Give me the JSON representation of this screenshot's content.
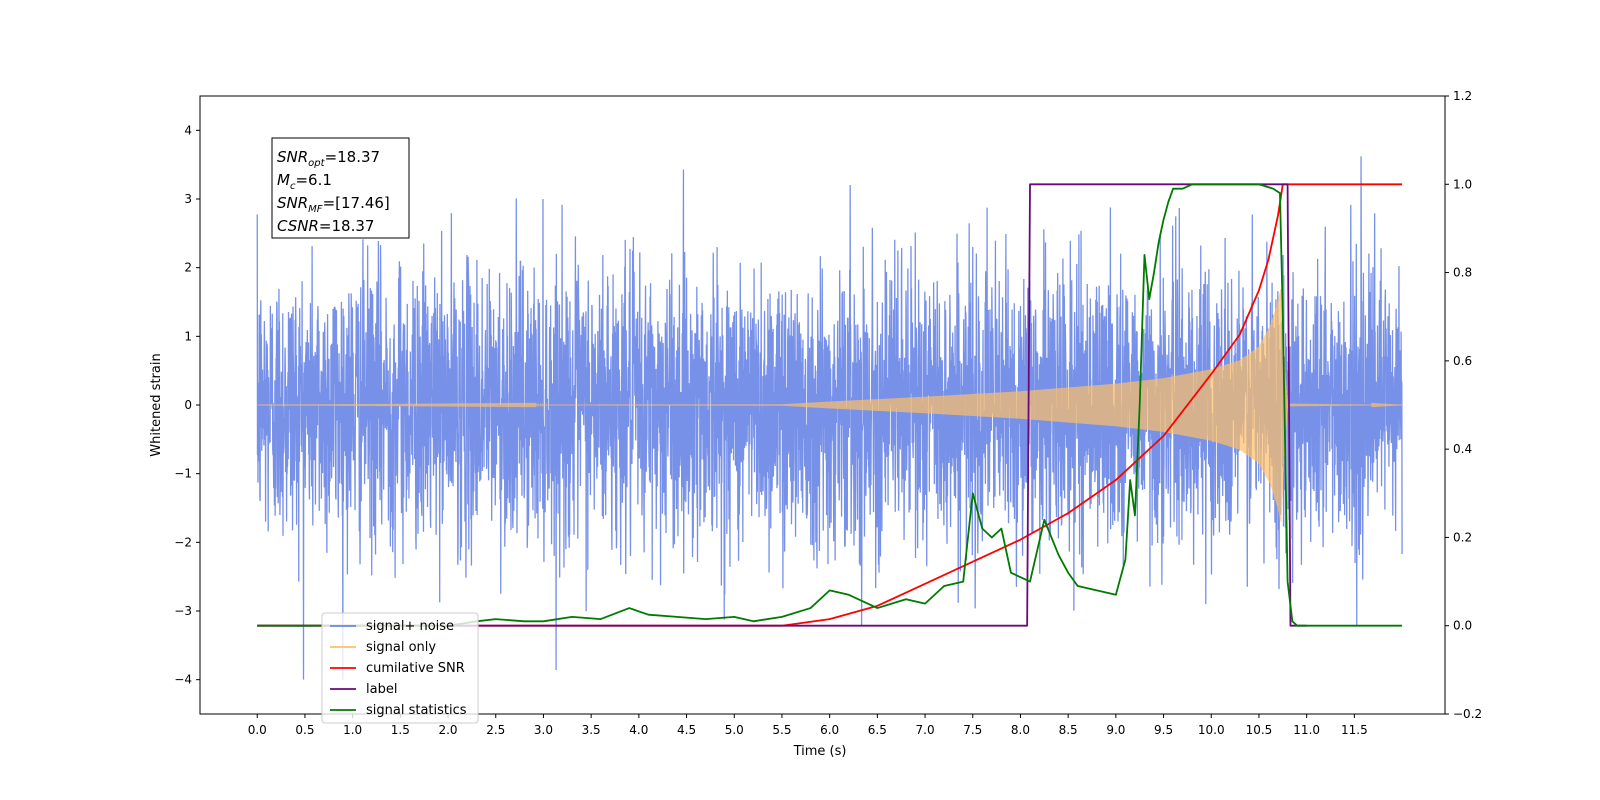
{
  "chart_data": {
    "type": "line",
    "xlabel": "Time (s)",
    "ylabel": "Whitened strain",
    "xlim": [
      -0.6,
      12.45
    ],
    "ylim": [
      -4.5,
      4.5
    ],
    "y2lim": [
      -0.2,
      1.2
    ],
    "x_ticks": [
      "0.0",
      "0.5",
      "1.0",
      "1.5",
      "2.0",
      "2.5",
      "3.0",
      "3.5",
      "4.0",
      "4.5",
      "5.0",
      "5.5",
      "6.0",
      "6.5",
      "7.0",
      "7.5",
      "8.0",
      "8.5",
      "9.0",
      "9.5",
      "10.0",
      "10.5",
      "11.0",
      "11.5"
    ],
    "y_ticks": [
      "−4",
      "−3",
      "−2",
      "−1",
      "0",
      "1",
      "2",
      "3",
      "4"
    ],
    "y2_ticks": [
      "−0.2",
      "0.0",
      "0.2",
      "0.4",
      "0.6",
      "0.8",
      "1.0",
      "1.2"
    ],
    "annotation": {
      "lines": [
        {
          "base": "SNR",
          "sub": "opt",
          "rest": "=18.37"
        },
        {
          "base": "M",
          "sub": "c",
          "rest": "=6.1"
        },
        {
          "base": "SNR",
          "sub": "MF",
          "rest": "=[17.46]"
        },
        {
          "base": "CSNR",
          "sub": "",
          "rest": "=18.37"
        }
      ]
    },
    "legend": {
      "placement": "lower-left",
      "entries": [
        {
          "label": "signal+ noise",
          "color": "#6b88e6"
        },
        {
          "label": "signal only",
          "color": "#ffbf66"
        },
        {
          "label": "cumilative SNR",
          "color": "#ff0000"
        },
        {
          "label": "label",
          "color": "#6a0a7a"
        },
        {
          "label": "signal statistics",
          "color": "#007a00"
        }
      ]
    },
    "series": [
      {
        "name": "signal+ noise",
        "axis": "left",
        "x_range": [
          0.0,
          12.0
        ],
        "noise_sigma": 1.0,
        "peak_range": [
          -4.0,
          4.1
        ]
      },
      {
        "name": "signal only",
        "axis": "left",
        "envelope": {
          "x": [
            0.0,
            5.5,
            6.0,
            7.0,
            8.0,
            9.0,
            9.5,
            10.0,
            10.3,
            10.5,
            10.62,
            10.7,
            10.73,
            10.77,
            10.8,
            12.0
          ],
          "amp": [
            0.0,
            0.01,
            0.05,
            0.12,
            0.2,
            0.31,
            0.39,
            0.52,
            0.65,
            0.85,
            1.15,
            1.5,
            1.7,
            0.5,
            0.02,
            0.0
          ]
        }
      },
      {
        "name": "cumilative SNR",
        "axis": "right",
        "x": [
          0.0,
          5.5,
          6.0,
          6.5,
          7.0,
          7.5,
          8.0,
          8.5,
          9.0,
          9.5,
          10.0,
          10.3,
          10.5,
          10.6,
          10.7,
          10.75,
          12.0
        ],
        "y": [
          0.0,
          0.0,
          0.015,
          0.045,
          0.095,
          0.145,
          0.195,
          0.255,
          0.33,
          0.43,
          0.57,
          0.66,
          0.76,
          0.83,
          0.93,
          1.0,
          1.0
        ]
      },
      {
        "name": "label",
        "axis": "right",
        "x": [
          0.0,
          8.07,
          8.1,
          10.8,
          10.83,
          11.0
        ],
        "y": [
          0.0,
          0.0,
          1.0,
          1.0,
          0.0,
          0.0
        ]
      },
      {
        "name": "signal statistics",
        "axis": "right",
        "x": [
          0.0,
          2.0,
          2.3,
          2.5,
          2.8,
          3.0,
          3.3,
          3.6,
          3.9,
          4.1,
          4.4,
          4.7,
          5.0,
          5.2,
          5.5,
          5.8,
          6.0,
          6.2,
          6.5,
          6.8,
          7.0,
          7.2,
          7.4,
          7.5,
          7.6,
          7.7,
          7.8,
          7.9,
          8.1,
          8.25,
          8.4,
          8.5,
          8.6,
          8.8,
          9.0,
          9.1,
          9.15,
          9.2,
          9.25,
          9.3,
          9.35,
          9.4,
          9.45,
          9.5,
          9.55,
          9.6,
          9.7,
          9.8,
          10.0,
          10.3,
          10.5,
          10.65,
          10.72,
          10.75,
          10.8,
          10.85,
          10.9,
          12.0
        ],
        "y": [
          0.0,
          0.0,
          0.01,
          0.015,
          0.01,
          0.01,
          0.02,
          0.015,
          0.04,
          0.025,
          0.02,
          0.015,
          0.02,
          0.01,
          0.02,
          0.04,
          0.08,
          0.07,
          0.04,
          0.06,
          0.05,
          0.09,
          0.1,
          0.3,
          0.22,
          0.2,
          0.22,
          0.12,
          0.1,
          0.24,
          0.16,
          0.12,
          0.09,
          0.08,
          0.07,
          0.15,
          0.33,
          0.25,
          0.5,
          0.84,
          0.74,
          0.8,
          0.87,
          0.92,
          0.96,
          0.99,
          0.99,
          1.0,
          1.0,
          1.0,
          1.0,
          0.99,
          0.98,
          0.7,
          0.1,
          0.01,
          0.0,
          0.0
        ]
      }
    ]
  }
}
